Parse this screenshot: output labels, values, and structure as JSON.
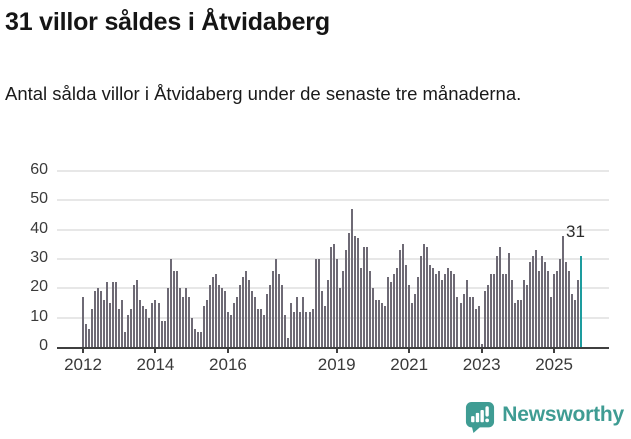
{
  "header": {
    "title": "31 villor såldes i Åtvidaberg",
    "subtitle": "Antal sålda villor i Åtvidaberg under de senaste tre månaderna."
  },
  "chart_data": {
    "type": "bar",
    "title": "31 villor såldes i Åtvidaberg",
    "subtitle": "Antal sålda villor i Åtvidaberg under de senaste tre månaderna.",
    "x_start": "2012-01",
    "frequency": "monthly-rolling-3-month-sum",
    "ylabel": "",
    "xlabel": "",
    "ylim": [
      0,
      60
    ],
    "yticks": [
      0,
      10,
      20,
      30,
      40,
      50,
      60
    ],
    "grid": "horizontal",
    "legend": "none",
    "bar_color": "#6e6a75",
    "highlight_color": "#1d9c9e",
    "values": [
      17,
      8,
      6,
      13,
      19,
      20,
      19,
      16,
      22,
      15,
      22,
      22,
      13,
      16,
      5,
      11,
      13,
      21,
      23,
      16,
      14,
      13,
      10,
      15,
      16,
      15,
      9,
      9,
      20,
      30,
      26,
      26,
      20,
      17,
      20,
      17,
      10,
      6,
      5,
      5,
      14,
      16,
      21,
      24,
      25,
      21,
      20,
      19,
      12,
      11,
      15,
      17,
      21,
      24,
      26,
      23,
      19,
      17,
      13,
      13,
      11,
      18,
      21,
      26,
      30,
      25,
      21,
      11,
      3,
      15,
      12,
      17,
      12,
      17,
      12,
      12,
      13,
      30,
      30,
      19,
      14,
      23,
      34,
      35,
      30,
      20,
      26,
      33,
      39,
      47,
      38,
      37,
      27,
      34,
      34,
      26,
      20,
      16,
      16,
      15,
      14,
      24,
      22,
      25,
      27,
      33,
      35,
      28,
      21,
      15,
      18,
      24,
      31,
      35,
      34,
      28,
      27,
      25,
      26,
      23,
      25,
      27,
      26,
      25,
      17,
      15,
      18,
      23,
      17,
      17,
      13,
      14,
      1,
      19,
      21,
      25,
      25,
      31,
      34,
      25,
      25,
      32,
      23,
      15,
      16,
      16,
      23,
      21,
      29,
      31,
      33,
      26,
      31,
      29,
      26,
      17,
      25,
      26,
      30,
      38,
      29,
      26,
      18,
      16,
      23,
      31
    ],
    "highlight": {
      "index": 165,
      "value": 31,
      "label": "31"
    },
    "xticks": [
      {
        "label": "2012",
        "month_index": 0
      },
      {
        "label": "2014",
        "month_index": 24
      },
      {
        "label": "2016",
        "month_index": 48
      },
      {
        "label": "2019",
        "month_index": 84
      },
      {
        "label": "2021",
        "month_index": 108
      },
      {
        "label": "2023",
        "month_index": 132
      },
      {
        "label": "2025",
        "month_index": 156
      }
    ]
  },
  "footer": {
    "brand": "Newsworthy",
    "brand_color": "#3f9c93",
    "logo_icon": "newsworthy-bubble-chart-icon"
  }
}
